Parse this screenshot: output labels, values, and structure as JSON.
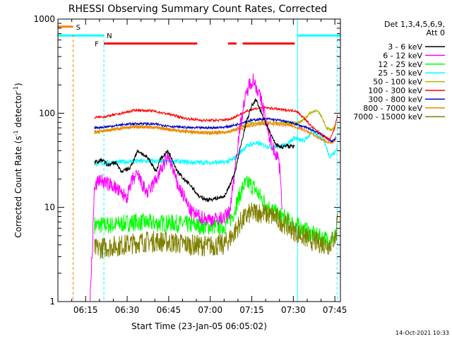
{
  "chart_data": {
    "type": "line",
    "title": "RHESSI Observing Summary Count Rates, Corrected",
    "xlabel": "Start Time (23-Jan-05 06:05:02)",
    "ylabel_main": "Corrected Count Rate (s",
    "ylabel_sup1": "-1",
    "ylabel_mid": " detector",
    "ylabel_sup2": "-1",
    "ylabel_end": ")",
    "ylog": true,
    "ylim": [
      1,
      1000
    ],
    "xlim_minutes": [
      0,
      102
    ],
    "x_ticks": [
      {
        "m": 10,
        "label": "06:15"
      },
      {
        "m": 25,
        "label": "06:30"
      },
      {
        "m": 40,
        "label": "06:45"
      },
      {
        "m": 55,
        "label": "07:00"
      },
      {
        "m": 70,
        "label": "07:15"
      },
      {
        "m": 85,
        "label": "07:30"
      },
      {
        "m": 100,
        "label": "07:45"
      }
    ],
    "y_ticks": [
      {
        "v": 1,
        "label": "1"
      },
      {
        "v": 10,
        "label": "10"
      },
      {
        "v": 100,
        "label": "100"
      },
      {
        "v": 1000,
        "label": "1000"
      }
    ],
    "legend_header": [
      "Det 1,3,4,5,6,9,",
      "Att 0"
    ],
    "legend_position": "right",
    "flag_bars": [
      {
        "label": "S",
        "color": "#ff7f00",
        "segments": [
          [
            0,
            5.5
          ]
        ],
        "level": 830
      },
      {
        "label": "N",
        "color": "#00ffff",
        "segments": [
          [
            0,
            16.6
          ],
          [
            86.7,
            102
          ]
        ],
        "level": 670
      },
      {
        "label": "F",
        "color": "#ff0000",
        "segments": [
          [
            16.6,
            50.3
          ],
          [
            61.4,
            64.5
          ],
          [
            66.7,
            85.5
          ]
        ],
        "level": 550
      }
    ],
    "vlines": [
      {
        "m": 5.5,
        "color": "#ff7f00",
        "dashed": true
      },
      {
        "m": 16.6,
        "color": "#00ffff",
        "dashed": true
      },
      {
        "m": 86.5,
        "color": "#00ffff",
        "dashed": false
      },
      {
        "m": 100.8,
        "color": "#00ffff",
        "dashed": true
      }
    ],
    "series": [
      {
        "name": "3 - 6 keV",
        "color": "#000000",
        "noise": 0.05,
        "points": [
          [
            13.2,
            30
          ],
          [
            16,
            32
          ],
          [
            18,
            28
          ],
          [
            21,
            30
          ],
          [
            22.8,
            24
          ],
          [
            26,
            26
          ],
          [
            28.8,
            40
          ],
          [
            30,
            38
          ],
          [
            33,
            32
          ],
          [
            35.5,
            24
          ],
          [
            37,
            33
          ],
          [
            39.5,
            39
          ],
          [
            41,
            34
          ],
          [
            43,
            24
          ],
          [
            45.5,
            20
          ],
          [
            48,
            17
          ],
          [
            51,
            13
          ],
          [
            54,
            12
          ],
          [
            57,
            12.5
          ],
          [
            60,
            13
          ],
          [
            62,
            17
          ],
          [
            64,
            24
          ],
          [
            66,
            45
          ],
          [
            68,
            80
          ],
          [
            70,
            120
          ],
          [
            71.5,
            140
          ],
          [
            73,
            110
          ],
          [
            75,
            80
          ],
          [
            77,
            58
          ],
          [
            79,
            46
          ],
          [
            81,
            44
          ],
          [
            83,
            45
          ],
          [
            85.5,
            44
          ]
        ]
      },
      {
        "name": "6 - 12 keV",
        "color": "#ff00ff",
        "noise": 0.08,
        "points": [
          [
            11.6,
            1
          ],
          [
            12.3,
            3
          ],
          [
            13.2,
            16
          ],
          [
            15,
            20
          ],
          [
            17.5,
            18
          ],
          [
            20,
            17
          ],
          [
            22.8,
            14
          ],
          [
            25,
            13
          ],
          [
            27,
            20
          ],
          [
            29,
            22
          ],
          [
            30.5,
            17
          ],
          [
            32.5,
            14
          ],
          [
            34.5,
            18
          ],
          [
            36,
            21
          ],
          [
            38,
            28
          ],
          [
            40,
            35
          ],
          [
            41.5,
            25
          ],
          [
            43,
            18
          ],
          [
            45.5,
            13
          ],
          [
            48,
            9
          ],
          [
            51,
            8
          ],
          [
            54,
            7.5
          ],
          [
            57,
            7.5
          ],
          [
            60,
            7.8
          ],
          [
            62,
            9
          ],
          [
            63.5,
            20
          ],
          [
            65,
            50
          ],
          [
            67,
            120
          ],
          [
            69,
            200
          ],
          [
            70.5,
            230
          ],
          [
            72,
            180
          ],
          [
            74,
            120
          ],
          [
            76,
            60
          ],
          [
            78,
            40
          ],
          [
            79.5,
            35
          ],
          [
            80.5,
            20
          ],
          [
            81,
            9
          ]
        ]
      },
      {
        "name": "12 - 25 keV",
        "color": "#00ff00",
        "noise": 0.1,
        "points": [
          [
            13.2,
            6.5
          ],
          [
            20,
            6.5
          ],
          [
            28,
            7
          ],
          [
            35,
            6.8
          ],
          [
            42,
            6.8
          ],
          [
            48,
            6.5
          ],
          [
            54,
            6.3
          ],
          [
            60,
            6.3
          ],
          [
            63,
            8
          ],
          [
            65,
            12
          ],
          [
            67,
            17
          ],
          [
            69,
            18
          ],
          [
            71,
            16
          ],
          [
            73,
            13
          ],
          [
            75,
            11
          ],
          [
            77,
            9.5
          ],
          [
            79,
            8.5
          ],
          [
            81,
            8
          ],
          [
            84,
            7
          ],
          [
            88,
            6
          ],
          [
            93,
            5
          ],
          [
            98,
            4.5
          ],
          [
            100.5,
            5
          ]
        ]
      },
      {
        "name": "25 - 50 keV",
        "color": "#00ffff",
        "noise": 0.06,
        "points": [
          [
            13.2,
            29
          ],
          [
            20,
            30
          ],
          [
            28,
            31
          ],
          [
            35,
            31
          ],
          [
            42,
            31
          ],
          [
            48,
            30
          ],
          [
            54,
            30
          ],
          [
            60,
            30
          ],
          [
            63,
            32
          ],
          [
            65,
            36
          ],
          [
            67,
            42
          ],
          [
            69,
            46
          ],
          [
            71,
            48
          ],
          [
            73,
            47
          ],
          [
            75,
            45
          ],
          [
            77,
            44
          ],
          [
            79,
            44
          ],
          [
            81,
            45
          ],
          [
            83,
            48
          ],
          [
            85.5,
            55
          ],
          [
            87,
            52
          ],
          [
            89,
            51
          ],
          [
            92,
            65
          ],
          [
            94,
            58
          ],
          [
            96,
            52
          ],
          [
            98,
            35
          ],
          [
            100,
            38
          ],
          [
            101,
            45
          ]
        ]
      },
      {
        "name": "50 - 100 keV",
        "color": "#b4b400",
        "noise": 0.04,
        "points": [
          [
            13.2,
            62
          ],
          [
            18,
            66
          ],
          [
            24,
            70
          ],
          [
            30,
            72
          ],
          [
            36,
            70
          ],
          [
            42,
            66
          ],
          [
            48,
            63
          ],
          [
            54,
            62
          ],
          [
            60,
            62
          ],
          [
            63,
            65
          ],
          [
            66,
            72
          ],
          [
            70,
            78
          ],
          [
            74,
            80
          ],
          [
            78,
            80
          ],
          [
            82,
            78
          ],
          [
            85.5,
            78
          ],
          [
            88,
            82
          ],
          [
            91,
            100
          ],
          [
            93,
            108
          ],
          [
            95,
            95
          ],
          [
            97,
            70
          ],
          [
            99,
            65
          ],
          [
            100.5,
            80
          ]
        ]
      },
      {
        "name": "100 - 300 keV",
        "color": "#ff0000",
        "noise": 0.03,
        "points": [
          [
            13.2,
            90
          ],
          [
            17,
            92
          ],
          [
            22,
            98
          ],
          [
            28,
            108
          ],
          [
            34,
            106
          ],
          [
            40,
            98
          ],
          [
            46,
            88
          ],
          [
            52,
            84
          ],
          [
            58,
            84
          ],
          [
            62,
            86
          ],
          [
            66,
            98
          ],
          [
            70,
            110
          ],
          [
            74,
            115
          ],
          [
            78,
            112
          ],
          [
            82,
            108
          ],
          [
            86,
            106
          ],
          [
            89,
            88
          ],
          [
            92,
            70
          ],
          [
            95,
            60
          ],
          [
            98,
            52
          ],
          [
            100,
            70
          ],
          [
            101,
            100
          ]
        ]
      },
      {
        "name": "300 - 800 keV",
        "color": "#0000c8",
        "noise": 0.03,
        "points": [
          [
            13.2,
            70
          ],
          [
            18,
            72
          ],
          [
            24,
            76
          ],
          [
            30,
            78
          ],
          [
            36,
            76
          ],
          [
            42,
            72
          ],
          [
            48,
            70
          ],
          [
            54,
            70
          ],
          [
            60,
            71
          ],
          [
            64,
            75
          ],
          [
            68,
            82
          ],
          [
            72,
            86
          ],
          [
            76,
            87
          ],
          [
            80,
            84
          ],
          [
            84,
            80
          ],
          [
            88,
            73
          ],
          [
            91,
            68
          ],
          [
            94,
            62
          ],
          [
            97,
            55
          ],
          [
            99,
            50
          ],
          [
            100.5,
            55
          ]
        ]
      },
      {
        "name": "800 - 7000 keV",
        "color": "#ff7f00",
        "noise": 0.035,
        "points": [
          [
            13.2,
            64
          ],
          [
            18,
            66
          ],
          [
            24,
            70
          ],
          [
            30,
            72
          ],
          [
            36,
            70
          ],
          [
            42,
            66
          ],
          [
            48,
            64
          ],
          [
            54,
            62
          ],
          [
            60,
            63
          ],
          [
            64,
            66
          ],
          [
            68,
            72
          ],
          [
            72,
            76
          ],
          [
            76,
            77
          ],
          [
            80,
            76
          ],
          [
            84,
            74
          ],
          [
            88,
            68
          ],
          [
            91,
            62
          ],
          [
            94,
            55
          ],
          [
            97,
            50
          ],
          [
            99,
            48
          ],
          [
            100.5,
            52
          ]
        ]
      },
      {
        "name": "7000 - 15000 keV",
        "color": "#808000",
        "noise": 0.12,
        "points": [
          [
            13.2,
            3.6
          ],
          [
            18,
            3.8
          ],
          [
            24,
            4
          ],
          [
            30,
            4.3
          ],
          [
            36,
            4.4
          ],
          [
            42,
            4.2
          ],
          [
            48,
            4
          ],
          [
            54,
            3.9
          ],
          [
            60,
            4
          ],
          [
            63,
            5
          ],
          [
            66,
            7
          ],
          [
            69,
            8.5
          ],
          [
            72,
            9
          ],
          [
            75,
            8.5
          ],
          [
            78,
            8
          ],
          [
            81,
            7
          ],
          [
            84,
            6
          ],
          [
            88,
            5
          ],
          [
            93,
            4.3
          ],
          [
            98,
            4
          ],
          [
            100.5,
            5
          ],
          [
            101,
            11
          ]
        ]
      }
    ]
  },
  "footer": {
    "timestamp": "14-Oct-2021 10:33"
  }
}
